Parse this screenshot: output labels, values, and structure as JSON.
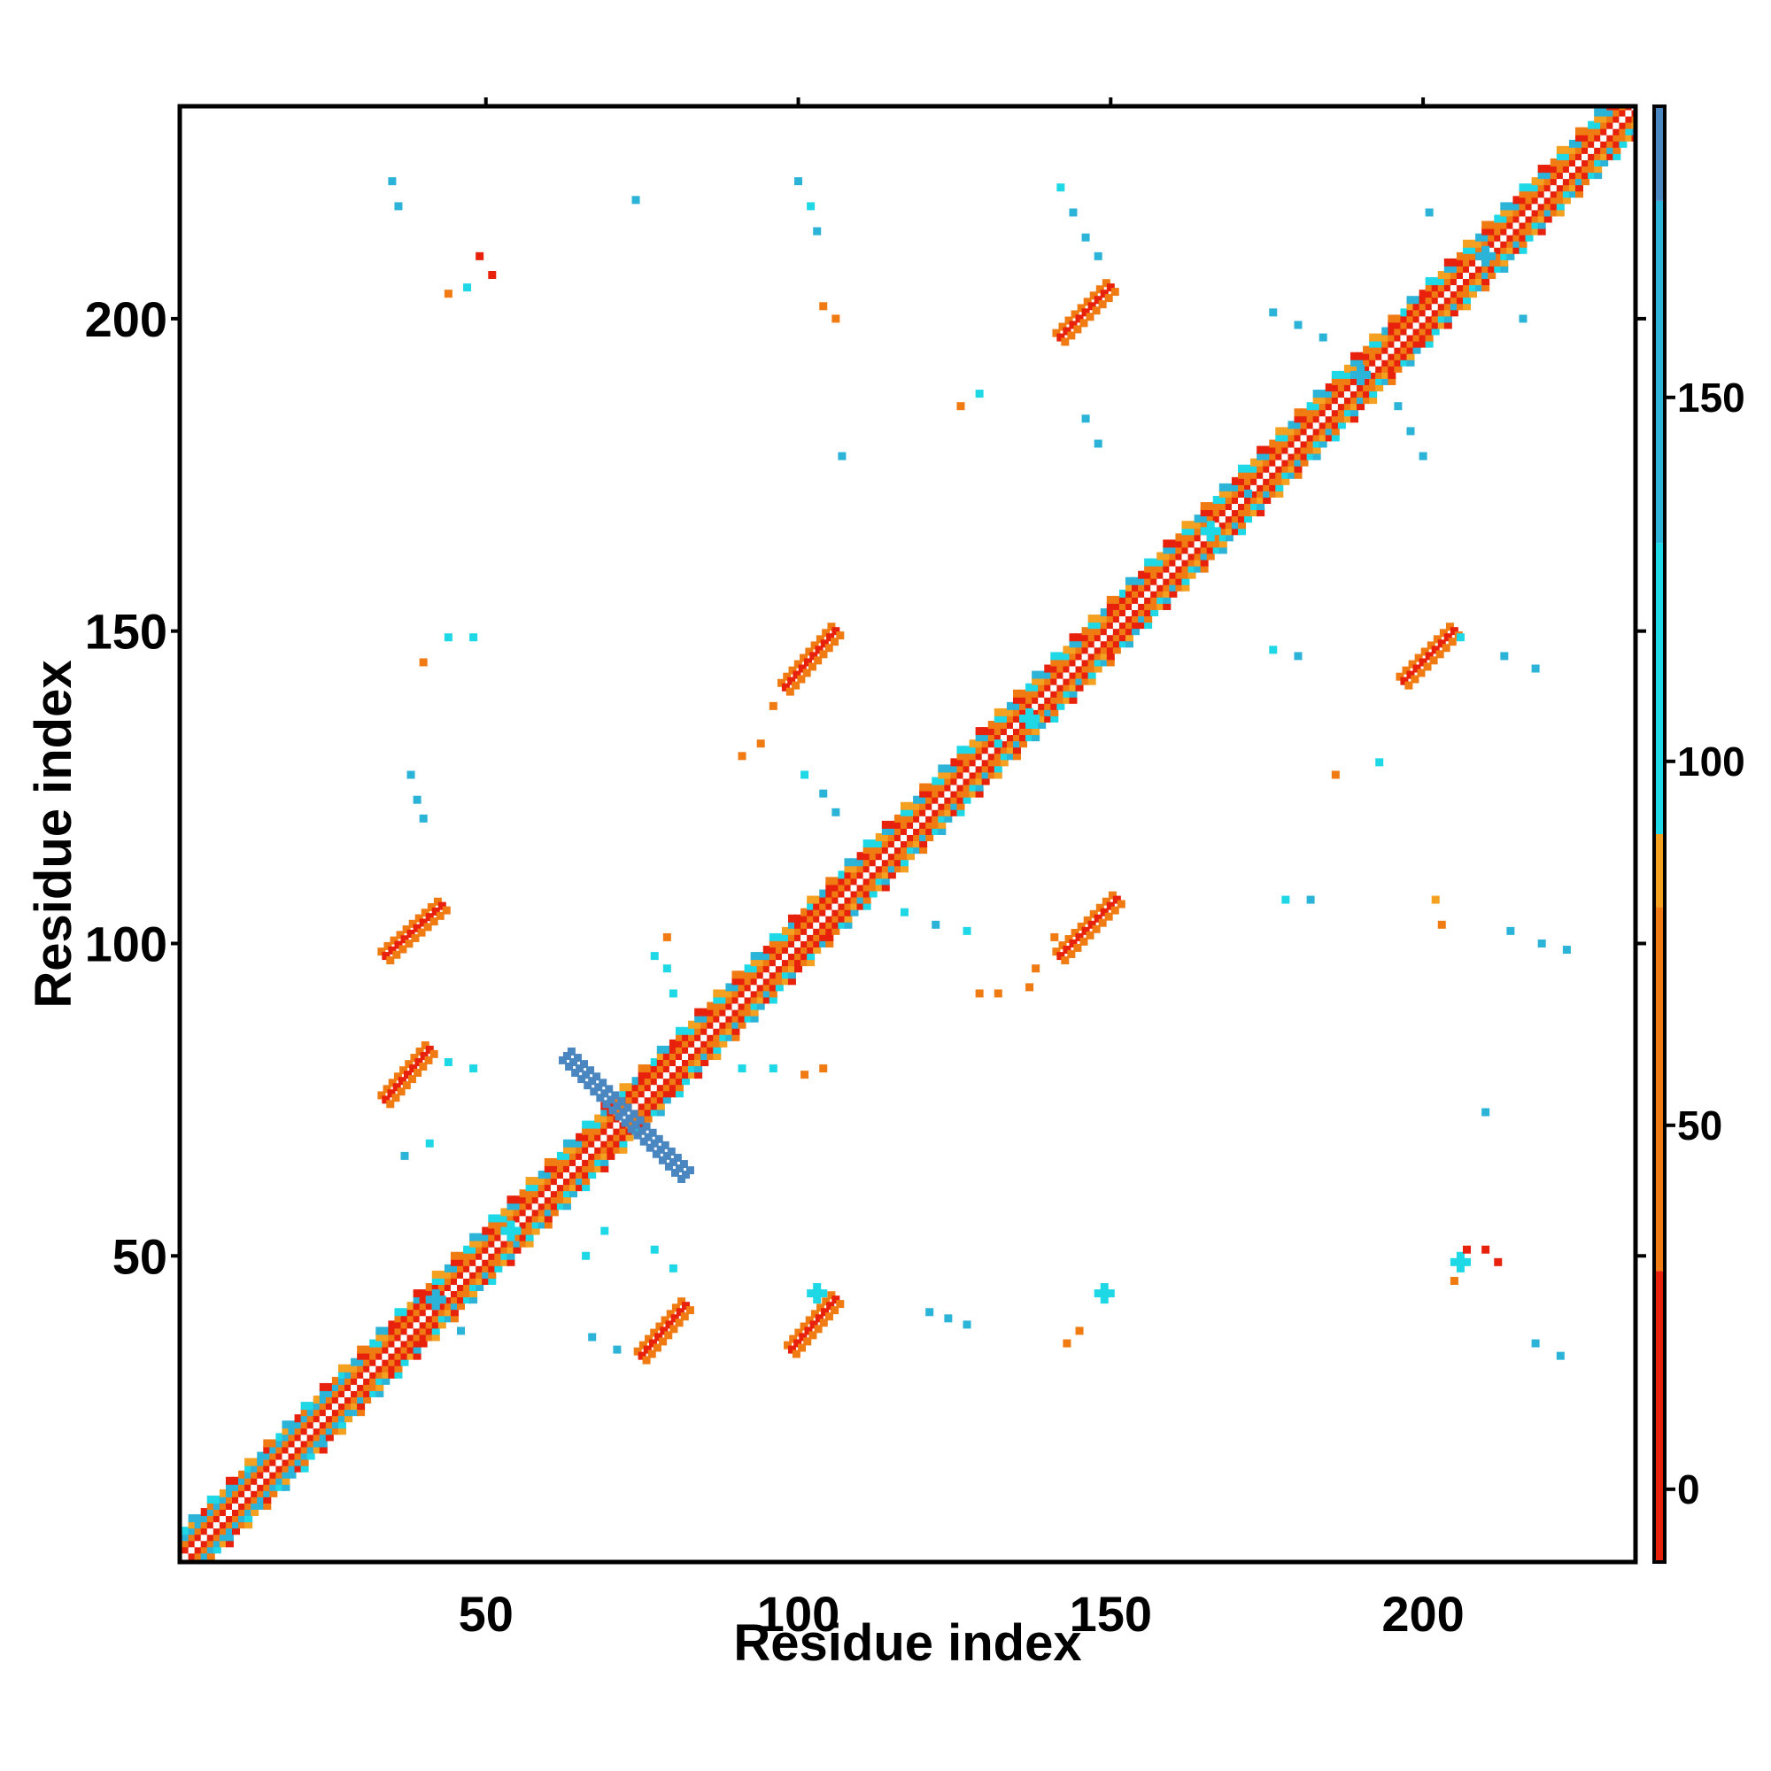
{
  "chart_data": {
    "type": "heatmap",
    "title": "",
    "xlabel": "Residue index",
    "ylabel": "Residue index",
    "xlim": [
      1,
      234
    ],
    "ylim": [
      1,
      234
    ],
    "x_ticks": [
      50,
      100,
      150,
      200
    ],
    "y_ticks": [
      50,
      100,
      150,
      200
    ],
    "colorbar": {
      "range": [
        -10,
        190
      ],
      "ticks": [
        0,
        50,
        100,
        150
      ],
      "bands": [
        {
          "from": -10,
          "to": 30,
          "color": "#e8210c"
        },
        {
          "from": 30,
          "to": 80,
          "color": "#f07b12"
        },
        {
          "from": 80,
          "to": 90,
          "color": "#f4a020"
        },
        {
          "from": 90,
          "to": 130,
          "color": "#1fd8e6"
        },
        {
          "from": 130,
          "to": 177,
          "color": "#2cb3d8"
        },
        {
          "from": 177,
          "to": 190,
          "color": "#4a86c0"
        }
      ]
    },
    "diagonal": {
      "from": 1,
      "to": 234,
      "half_width_residues": 5
    },
    "diagonal_bands": [
      {
        "start": 1,
        "end": 28,
        "color": "#2cb3d8"
      },
      {
        "start": 35,
        "end": 42,
        "color": "#e8210c"
      },
      {
        "start": 70,
        "end": 82,
        "color": "#e8210c"
      },
      {
        "start": 100,
        "end": 108,
        "color": "#e8210c"
      },
      {
        "start": 150,
        "end": 154,
        "color": "#e8210c"
      },
      {
        "start": 195,
        "end": 202,
        "color": "#e8210c"
      }
    ],
    "contact_blocks": [
      {
        "x1": 34,
        "y1": 75,
        "x2": 41,
        "y2": 83,
        "color": "#e8210c",
        "edge_color": "#f07b12"
      },
      {
        "x1": 34,
        "y1": 98,
        "x2": 43,
        "y2": 106,
        "color": "#e8210c",
        "edge_color": "#f07b12"
      },
      {
        "x1": 75,
        "y1": 34,
        "x2": 82,
        "y2": 42,
        "color": "#e8210c",
        "edge_color": "#f07b12"
      },
      {
        "x1": 99,
        "y1": 35,
        "x2": 106,
        "y2": 43,
        "color": "#e8210c",
        "edge_color": "#f07b12"
      },
      {
        "x1": 98,
        "y1": 141,
        "x2": 106,
        "y2": 150,
        "color": "#e8210c",
        "edge_color": "#f07b12"
      },
      {
        "x1": 142,
        "y1": 98,
        "x2": 151,
        "y2": 107,
        "color": "#e8210c",
        "edge_color": "#f07b12"
      },
      {
        "x1": 142,
        "y1": 197,
        "x2": 150,
        "y2": 205,
        "color": "#e8210c",
        "edge_color": "#f07b12"
      },
      {
        "x1": 197,
        "y1": 142,
        "x2": 205,
        "y2": 150,
        "color": "#e8210c",
        "edge_color": "#f07b12"
      }
    ],
    "anti_diagonal": {
      "x1": 63,
      "y1": 82,
      "x2": 82,
      "y2": 63,
      "color": "#4a86c0"
    },
    "clusters": [
      {
        "x": 42,
        "y": 43,
        "color": "#2cb3d8"
      },
      {
        "x": 54,
        "y": 54,
        "color": "#1fd8e6"
      },
      {
        "x": 103,
        "y": 44,
        "color": "#1fd8e6"
      },
      {
        "x": 137,
        "y": 136,
        "color": "#1fd8e6"
      },
      {
        "x": 166,
        "y": 166,
        "color": "#1fd8e6"
      },
      {
        "x": 190,
        "y": 191,
        "color": "#2cb3d8"
      },
      {
        "x": 210,
        "y": 210,
        "color": "#2cb3d8"
      },
      {
        "x": 149,
        "y": 44,
        "color": "#1fd8e6"
      },
      {
        "x": 206,
        "y": 49,
        "color": "#1fd8e6"
      }
    ],
    "scatter_points": [
      {
        "x": 35,
        "y": 222,
        "color": "#2cb3d8"
      },
      {
        "x": 36,
        "y": 218,
        "color": "#2cb3d8"
      },
      {
        "x": 49,
        "y": 210,
        "color": "#e8210c"
      },
      {
        "x": 51,
        "y": 207,
        "color": "#e8210c"
      },
      {
        "x": 47,
        "y": 205,
        "color": "#1fd8e6"
      },
      {
        "x": 44,
        "y": 204,
        "color": "#f07b12"
      },
      {
        "x": 74,
        "y": 219,
        "color": "#2cb3d8"
      },
      {
        "x": 100,
        "y": 222,
        "color": "#2cb3d8"
      },
      {
        "x": 102,
        "y": 218,
        "color": "#1fd8e6"
      },
      {
        "x": 103,
        "y": 214,
        "color": "#2cb3d8"
      },
      {
        "x": 104,
        "y": 202,
        "color": "#f07b12"
      },
      {
        "x": 106,
        "y": 200,
        "color": "#f07b12"
      },
      {
        "x": 107,
        "y": 178,
        "color": "#2cb3d8"
      },
      {
        "x": 142,
        "y": 221,
        "color": "#1fd8e6"
      },
      {
        "x": 144,
        "y": 217,
        "color": "#2cb3d8"
      },
      {
        "x": 146,
        "y": 213,
        "color": "#2cb3d8"
      },
      {
        "x": 148,
        "y": 210,
        "color": "#2cb3d8"
      },
      {
        "x": 129,
        "y": 188,
        "color": "#1fd8e6"
      },
      {
        "x": 126,
        "y": 186,
        "color": "#f07b12"
      },
      {
        "x": 146,
        "y": 184,
        "color": "#2cb3d8"
      },
      {
        "x": 148,
        "y": 180,
        "color": "#2cb3d8"
      },
      {
        "x": 176,
        "y": 201,
        "color": "#2cb3d8"
      },
      {
        "x": 180,
        "y": 199,
        "color": "#2cb3d8"
      },
      {
        "x": 184,
        "y": 197,
        "color": "#2cb3d8"
      },
      {
        "x": 196,
        "y": 186,
        "color": "#2cb3d8"
      },
      {
        "x": 198,
        "y": 182,
        "color": "#2cb3d8"
      },
      {
        "x": 200,
        "y": 178,
        "color": "#2cb3d8"
      },
      {
        "x": 201,
        "y": 217,
        "color": "#2cb3d8"
      },
      {
        "x": 216,
        "y": 200,
        "color": "#2cb3d8"
      },
      {
        "x": 40,
        "y": 145,
        "color": "#f07b12"
      },
      {
        "x": 44,
        "y": 149,
        "color": "#1fd8e6"
      },
      {
        "x": 48,
        "y": 149,
        "color": "#1fd8e6"
      },
      {
        "x": 38,
        "y": 127,
        "color": "#2cb3d8"
      },
      {
        "x": 39,
        "y": 123,
        "color": "#2cb3d8"
      },
      {
        "x": 40,
        "y": 120,
        "color": "#2cb3d8"
      },
      {
        "x": 94,
        "y": 132,
        "color": "#f07b12"
      },
      {
        "x": 91,
        "y": 130,
        "color": "#f07b12"
      },
      {
        "x": 96,
        "y": 138,
        "color": "#f07b12"
      },
      {
        "x": 101,
        "y": 127,
        "color": "#1fd8e6"
      },
      {
        "x": 104,
        "y": 124,
        "color": "#2cb3d8"
      },
      {
        "x": 106,
        "y": 121,
        "color": "#2cb3d8"
      },
      {
        "x": 176,
        "y": 147,
        "color": "#1fd8e6"
      },
      {
        "x": 180,
        "y": 146,
        "color": "#2cb3d8"
      },
      {
        "x": 206,
        "y": 149,
        "color": "#1fd8e6"
      },
      {
        "x": 213,
        "y": 146,
        "color": "#2cb3d8"
      },
      {
        "x": 218,
        "y": 144,
        "color": "#2cb3d8"
      },
      {
        "x": 193,
        "y": 129,
        "color": "#1fd8e6"
      },
      {
        "x": 186,
        "y": 127,
        "color": "#f07b12"
      },
      {
        "x": 117,
        "y": 105,
        "color": "#1fd8e6"
      },
      {
        "x": 122,
        "y": 103,
        "color": "#2cb3d8"
      },
      {
        "x": 127,
        "y": 102,
        "color": "#1fd8e6"
      },
      {
        "x": 141,
        "y": 101,
        "color": "#f07b12"
      },
      {
        "x": 138,
        "y": 96,
        "color": "#f07b12"
      },
      {
        "x": 129,
        "y": 92,
        "color": "#f07b12"
      },
      {
        "x": 132,
        "y": 92,
        "color": "#f07b12"
      },
      {
        "x": 137,
        "y": 93,
        "color": "#f07b12"
      },
      {
        "x": 178,
        "y": 107,
        "color": "#1fd8e6"
      },
      {
        "x": 182,
        "y": 107,
        "color": "#2cb3d8"
      },
      {
        "x": 203,
        "y": 103,
        "color": "#f07b12"
      },
      {
        "x": 202,
        "y": 107,
        "color": "#f4a020"
      },
      {
        "x": 214,
        "y": 102,
        "color": "#2cb3d8"
      },
      {
        "x": 219,
        "y": 100,
        "color": "#2cb3d8"
      },
      {
        "x": 223,
        "y": 99,
        "color": "#2cb3d8"
      },
      {
        "x": 79,
        "y": 101,
        "color": "#f07b12"
      },
      {
        "x": 77,
        "y": 98,
        "color": "#1fd8e6"
      },
      {
        "x": 79,
        "y": 96,
        "color": "#1fd8e6"
      },
      {
        "x": 80,
        "y": 92,
        "color": "#1fd8e6"
      },
      {
        "x": 48,
        "y": 80,
        "color": "#1fd8e6"
      },
      {
        "x": 44,
        "y": 81,
        "color": "#1fd8e6"
      },
      {
        "x": 91,
        "y": 80,
        "color": "#1fd8e6"
      },
      {
        "x": 96,
        "y": 80,
        "color": "#1fd8e6"
      },
      {
        "x": 101,
        "y": 79,
        "color": "#f07b12"
      },
      {
        "x": 104,
        "y": 80,
        "color": "#f07b12"
      },
      {
        "x": 37,
        "y": 66,
        "color": "#2cb3d8"
      },
      {
        "x": 41,
        "y": 68,
        "color": "#1fd8e6"
      },
      {
        "x": 210,
        "y": 73,
        "color": "#2cb3d8"
      },
      {
        "x": 69,
        "y": 54,
        "color": "#1fd8e6"
      },
      {
        "x": 66,
        "y": 50,
        "color": "#1fd8e6"
      },
      {
        "x": 77,
        "y": 51,
        "color": "#1fd8e6"
      },
      {
        "x": 80,
        "y": 48,
        "color": "#1fd8e6"
      },
      {
        "x": 67,
        "y": 37,
        "color": "#2cb3d8"
      },
      {
        "x": 71,
        "y": 35,
        "color": "#2cb3d8"
      },
      {
        "x": 121,
        "y": 41,
        "color": "#2cb3d8"
      },
      {
        "x": 124,
        "y": 40,
        "color": "#2cb3d8"
      },
      {
        "x": 127,
        "y": 39,
        "color": "#2cb3d8"
      },
      {
        "x": 145,
        "y": 38,
        "color": "#f07b12"
      },
      {
        "x": 143,
        "y": 36,
        "color": "#f07b12"
      },
      {
        "x": 207,
        "y": 51,
        "color": "#e8210c"
      },
      {
        "x": 210,
        "y": 51,
        "color": "#e8210c"
      },
      {
        "x": 212,
        "y": 49,
        "color": "#e8210c"
      },
      {
        "x": 205,
        "y": 46,
        "color": "#f07b12"
      },
      {
        "x": 218,
        "y": 36,
        "color": "#2cb3d8"
      },
      {
        "x": 222,
        "y": 34,
        "color": "#2cb3d8"
      },
      {
        "x": 46,
        "y": 38,
        "color": "#2cb3d8"
      },
      {
        "x": 132,
        "y": 132,
        "color": "#1fd8e6"
      },
      {
        "x": 172,
        "y": 172,
        "color": "#2cb3d8"
      }
    ]
  }
}
